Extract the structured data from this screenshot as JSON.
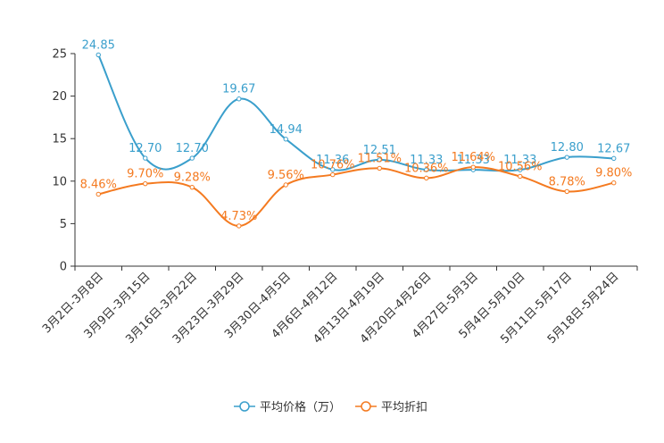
{
  "chart_data": {
    "type": "line",
    "title": "",
    "xlabel": "",
    "ylabel": "",
    "ylim": [
      0,
      25
    ],
    "yticks": [
      0,
      5,
      10,
      15,
      20,
      25
    ],
    "grid": false,
    "legend_position": "bottom-center",
    "categories": [
      "3月2日-3月8日",
      "3月9日-3月15日",
      "3月16日-3月22日",
      "3月23日-3月29日",
      "3月30日-4月5日",
      "4月6日-4月12日",
      "4月13日-4月19日",
      "4月20日-4月26日",
      "4月27日-5月3日",
      "5月4日-5月10日",
      "5月11日-5月17日",
      "5月18日-5月24日"
    ],
    "series": [
      {
        "name": "平均价格（万）",
        "color": "#3a9fcc",
        "values": [
          24.85,
          12.7,
          12.7,
          19.67,
          14.94,
          11.36,
          12.51,
          11.33,
          11.33,
          11.33,
          12.8,
          12.67
        ],
        "labels": [
          "24.85",
          "12.70",
          "12.70",
          "19.67",
          "14.94",
          "11.36",
          "12.51",
          "11.33",
          "11.33",
          "11.33",
          "12.80",
          "12.67"
        ]
      },
      {
        "name": "平均折扣",
        "color": "#f47a20",
        "values": [
          8.46,
          9.7,
          9.28,
          4.73,
          9.56,
          10.76,
          11.51,
          10.36,
          11.64,
          10.56,
          8.78,
          9.8
        ],
        "labels": [
          "8.46%",
          "9.70%",
          "9.28%",
          "4.73%",
          "9.56%",
          "10.76%",
          "11.51%",
          "10.36%",
          "11.64%",
          "10.56%",
          "8.78%",
          "9.80%"
        ]
      }
    ]
  }
}
